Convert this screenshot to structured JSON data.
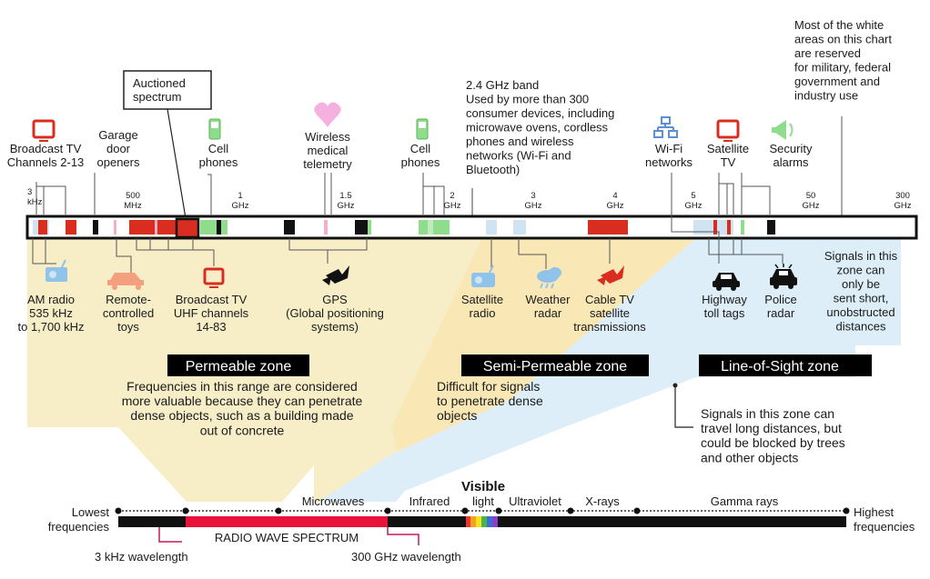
{
  "colors": {
    "permeable": "#f7eec8",
    "semi": "#f9e8b6",
    "los": "#ddeef8",
    "red": "#d92d20",
    "green": "#8fdc8c",
    "blue_light": "#cfe3f3",
    "pink": "#f5b0c8",
    "spectrum_red": "#e8123a",
    "magenta": "#c2185b"
  },
  "callouts": {
    "auctioned": "Auctioned\nspectrum",
    "band_24": "2.4 GHz band\nUsed by more than 300\nconsumer devices, including\nmicrowave ovens, cordless\nphones and wireless\nnetworks (Wi-Fi and\nBluetooth)",
    "white_areas": "Most of the white\nareas on this chart\nare reserved\nfor military, federal\ngovernment and\nindustry use",
    "short_zone": "Signals in this\nzone can\nonly be\nsent short,\nunobstructed\ndistances",
    "long_distance": "Signals in this zone can\ntravel long distances, but\ncould be blocked by trees\nand other objects"
  },
  "top_labels": [
    {
      "id": "broadcast-tv-2-13",
      "text": "Broadcast TV\nChannels 2-13",
      "icon": "tv-icon"
    },
    {
      "id": "garage-door",
      "text": "Garage\ndoor\nopeners",
      "icon": ""
    },
    {
      "id": "cell-phones-1",
      "text": "Cell\nphones",
      "icon": "cell-phone-icon"
    },
    {
      "id": "wireless-medical",
      "text": "Wireless\nmedical\ntelemetry",
      "icon": "heart-icon"
    },
    {
      "id": "cell-phones-2",
      "text": "Cell\nphones",
      "icon": "cell-phone-icon"
    },
    {
      "id": "wifi-networks",
      "text": "Wi-Fi\nnetworks",
      "icon": "network-icon"
    },
    {
      "id": "satellite-tv",
      "text": "Satellite\nTV",
      "icon": "tv-icon"
    },
    {
      "id": "security-alarms",
      "text": "Security\nalarms",
      "icon": "megaphone-icon"
    }
  ],
  "ticks": [
    {
      "label": "3\nkHz"
    },
    {
      "label": "500\nMHz"
    },
    {
      "label": "1\nGHz"
    },
    {
      "label": "1.5\nGHz"
    },
    {
      "label": "2\nGHz"
    },
    {
      "label": "3\nGHz"
    },
    {
      "label": "4\nGHz"
    },
    {
      "label": "5\nGHz"
    },
    {
      "label": "50\nGHz"
    },
    {
      "label": "300\nGHz"
    }
  ],
  "bottom_labels": [
    {
      "id": "am-radio",
      "text": "AM radio\n535 kHz\nto 1,700 kHz",
      "icon": "radio-icon"
    },
    {
      "id": "remote-toys",
      "text": "Remote-\ncontrolled\ntoys",
      "icon": "toy-car-icon"
    },
    {
      "id": "broadcast-uhf",
      "text": "Broadcast TV\nUHF channels\n14-83",
      "icon": "tv-icon"
    },
    {
      "id": "gps",
      "text": "GPS\n(Global positioning\nsystems)",
      "icon": "satellite-icon"
    },
    {
      "id": "satellite-radio",
      "text": "Satellite\nradio",
      "icon": "radio-icon"
    },
    {
      "id": "weather-radar",
      "text": "Weather\nradar",
      "icon": "cloud-icon"
    },
    {
      "id": "cable-tv",
      "text": "Cable TV\nsatellite\ntransmissions",
      "icon": "satellite-icon"
    },
    {
      "id": "highway-toll",
      "text": "Highway\ntoll tags",
      "icon": "car-icon"
    },
    {
      "id": "police-radar",
      "text": "Police\nradar",
      "icon": "police-car-icon"
    }
  ],
  "zones": [
    {
      "id": "permeable",
      "title": "Permeable zone",
      "desc": "Frequencies in this range are considered\nmore valuable because they can penetrate\ndense objects, such as a building made\nout of concrete"
    },
    {
      "id": "semi-permeable",
      "title": "Semi-Permeable zone",
      "desc": "Difficult for signals\nto penetrate dense\nobjects"
    },
    {
      "id": "line-of-sight",
      "title": "Line-of-Sight zone",
      "desc": ""
    }
  ],
  "spectrum": {
    "lowest": "Lowest\nfrequencies",
    "highest": "Highest\nfrequencies",
    "bands": [
      "Microwaves",
      "Infrared",
      "light",
      "Ultraviolet",
      "X-rays",
      "Gamma rays"
    ],
    "visible": "Visible",
    "radio": "RADIO WAVE SPECTRUM",
    "wl_low": "3 kHz wavelength",
    "wl_high": "300 GHz wavelength"
  }
}
